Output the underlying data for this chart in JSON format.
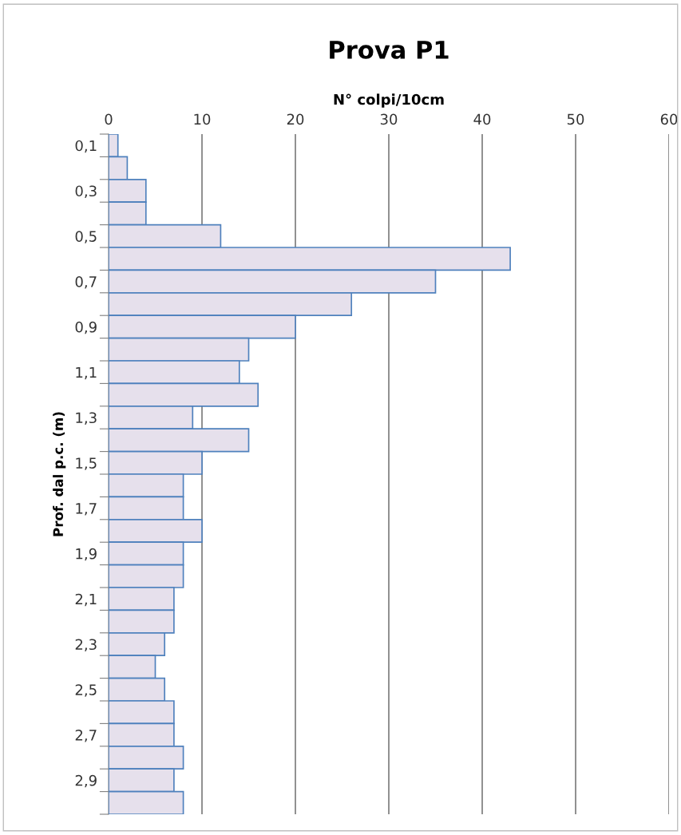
{
  "chart_data": {
    "type": "bar",
    "orientation": "horizontal",
    "title": "Prova P1",
    "xlabel": "N° colpi/10cm",
    "ylabel": "Prof. dal p.c. (m)",
    "categories": [
      "0,1",
      null,
      "0,3",
      null,
      "0,5",
      null,
      "0,7",
      null,
      "0,9",
      null,
      "1,1",
      null,
      "1,3",
      null,
      "1,5",
      null,
      "1,7",
      null,
      "1,9",
      null,
      "2,1",
      null,
      "2,3",
      null,
      "2,5",
      null,
      "2,7",
      null,
      "2,9",
      null
    ],
    "series": [
      {
        "color": "#e6e0ec",
        "values": [
          1,
          2,
          4,
          4,
          12,
          43,
          35,
          26,
          20,
          15,
          14,
          16,
          9,
          15,
          10,
          8,
          8,
          10,
          8,
          8,
          7,
          7,
          6,
          5,
          6,
          7,
          7,
          8,
          7,
          8
        ]
      }
    ],
    "xlim": [
      0,
      60
    ],
    "xticks": [
      0,
      10,
      20,
      30,
      40,
      50,
      60
    ],
    "grid": "x"
  }
}
